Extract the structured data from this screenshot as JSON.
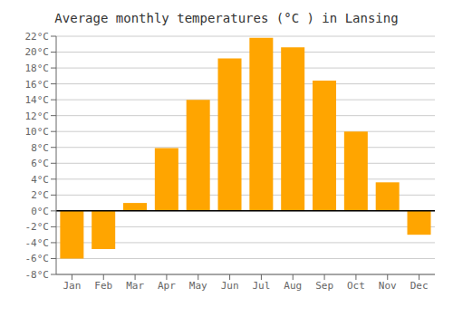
{
  "chart_data": {
    "type": "bar",
    "title": "Average monthly temperatures (°C ) in Lansing",
    "categories": [
      "Jan",
      "Feb",
      "Mar",
      "Apr",
      "May",
      "Jun",
      "Jul",
      "Aug",
      "Sep",
      "Oct",
      "Nov",
      "Dec"
    ],
    "values": [
      -6,
      -4.8,
      1,
      7.9,
      14,
      19.2,
      21.8,
      20.6,
      16.4,
      10,
      3.6,
      -3
    ],
    "color": "#FFA500",
    "ylim": [
      -8,
      22
    ],
    "yticks": [
      {
        "value": -8,
        "label": "-8°C"
      },
      {
        "value": -6,
        "label": "-6°C"
      },
      {
        "value": -4,
        "label": "-4°C"
      },
      {
        "value": -2,
        "label": "-2°C"
      },
      {
        "value": 0,
        "label": "0°C"
      },
      {
        "value": 2,
        "label": "2°C"
      },
      {
        "value": 4,
        "label": "4°C"
      },
      {
        "value": 6,
        "label": "6°C"
      },
      {
        "value": 8,
        "label": "8°C"
      },
      {
        "value": 10,
        "label": "10°C"
      },
      {
        "value": 12,
        "label": "12°C"
      },
      {
        "value": 14,
        "label": "14°C"
      },
      {
        "value": 16,
        "label": "16°C"
      },
      {
        "value": 18,
        "label": "18°C"
      },
      {
        "value": 20,
        "label": "20°C"
      },
      {
        "value": 22,
        "label": "22°C"
      }
    ],
    "grid": true
  }
}
